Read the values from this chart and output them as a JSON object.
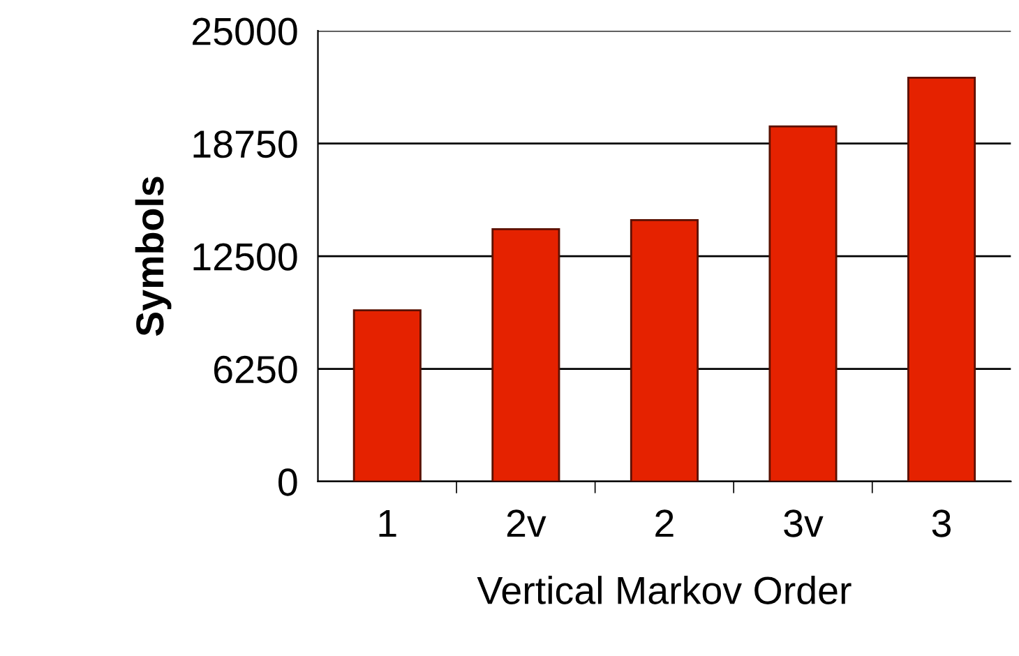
{
  "chart_data": {
    "type": "bar",
    "xlabel": "Vertical Markov Order",
    "ylabel": "Symbols",
    "categories": [
      "1",
      "2v",
      "2",
      "3v",
      "3"
    ],
    "values": [
      9500,
      14000,
      14500,
      19700,
      22400
    ],
    "color": "#e52200",
    "ylim": [
      0,
      25000
    ],
    "yticks": [
      0,
      6250,
      12500,
      18750,
      25000
    ],
    "grid": "y",
    "legend": false
  }
}
